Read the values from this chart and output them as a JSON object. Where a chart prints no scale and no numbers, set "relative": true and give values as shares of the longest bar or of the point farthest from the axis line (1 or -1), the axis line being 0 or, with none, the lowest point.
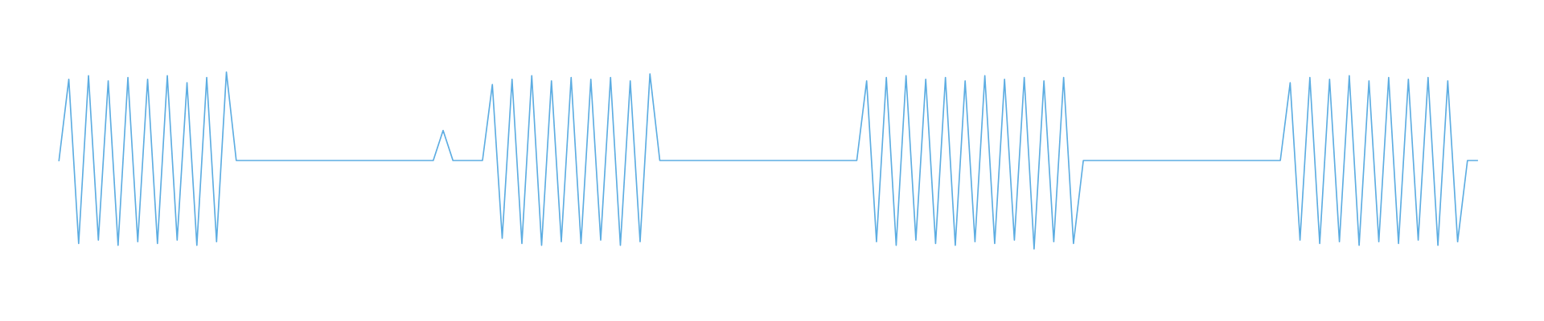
{
  "chart_data": {
    "type": "line",
    "relative": true,
    "categories": [
      null,
      null,
      null,
      null,
      null,
      null,
      null,
      null,
      null,
      null,
      null,
      null,
      null,
      null,
      null,
      null,
      null,
      null,
      null,
      null,
      null,
      null,
      null,
      null,
      null,
      null,
      null,
      null,
      null,
      null,
      null,
      null,
      null,
      null,
      null,
      null,
      null,
      null,
      null,
      null,
      null,
      null,
      null,
      null,
      null,
      null,
      null,
      null,
      null,
      null,
      null,
      null,
      null,
      null,
      null,
      null,
      null,
      null,
      null,
      null,
      null,
      null,
      null,
      null,
      null,
      null,
      null,
      null,
      null,
      null,
      null,
      null,
      null,
      null,
      null,
      null,
      null,
      null,
      null,
      null,
      null,
      null,
      null,
      null,
      null,
      null,
      null,
      null,
      null,
      null,
      null,
      null,
      null,
      null,
      null,
      null,
      null,
      null,
      null,
      null,
      null,
      null,
      null,
      null,
      null,
      null,
      null,
      null,
      null,
      null,
      null,
      null,
      null,
      null,
      null,
      null,
      null,
      null,
      null,
      null,
      null,
      null,
      null,
      null,
      null,
      null,
      null,
      null,
      null,
      null,
      null,
      null,
      null,
      null,
      null,
      null,
      null,
      null,
      null,
      null,
      null,
      null,
      null,
      null,
      null
    ],
    "series": [
      {
        "color": "#5dade2",
        "values": [
          0.5,
          0.96,
          0.03,
          0.98,
          0.05,
          0.95,
          0.02,
          0.97,
          0.04,
          0.96,
          0.03,
          0.98,
          0.05,
          0.94,
          0.02,
          0.97,
          0.04,
          1.0,
          0.5,
          0.5,
          0.5,
          0.5,
          0.5,
          0.5,
          0.5,
          0.5,
          0.5,
          0.5,
          0.5,
          0.5,
          0.5,
          0.5,
          0.5,
          0.5,
          0.5,
          0.5,
          0.5,
          0.5,
          0.5,
          0.67,
          0.5,
          0.5,
          0.5,
          0.5,
          0.93,
          0.06,
          0.96,
          0.03,
          0.98,
          0.02,
          0.95,
          0.04,
          0.97,
          0.03,
          0.96,
          0.05,
          0.97,
          0.02,
          0.95,
          0.04,
          0.99,
          0.5,
          0.5,
          0.5,
          0.5,
          0.5,
          0.5,
          0.5,
          0.5,
          0.5,
          0.5,
          0.5,
          0.5,
          0.5,
          0.5,
          0.5,
          0.5,
          0.5,
          0.5,
          0.5,
          0.5,
          0.5,
          0.95,
          0.04,
          0.97,
          0.02,
          0.98,
          0.05,
          0.96,
          0.03,
          0.97,
          0.02,
          0.95,
          0.04,
          0.98,
          0.03,
          0.96,
          0.05,
          0.97,
          0.0,
          0.95,
          0.04,
          0.97,
          0.03,
          0.5,
          0.5,
          0.5,
          0.5,
          0.5,
          0.5,
          0.5,
          0.5,
          0.5,
          0.5,
          0.5,
          0.5,
          0.5,
          0.5,
          0.5,
          0.5,
          0.5,
          0.5,
          0.5,
          0.5,
          0.5,
          0.94,
          0.05,
          0.97,
          0.03,
          0.96,
          0.04,
          0.98,
          0.02,
          0.95,
          0.04,
          0.97,
          0.03,
          0.96,
          0.05,
          0.97,
          0.02,
          0.95,
          0.04,
          0.5,
          0.5
        ]
      }
    ]
  }
}
